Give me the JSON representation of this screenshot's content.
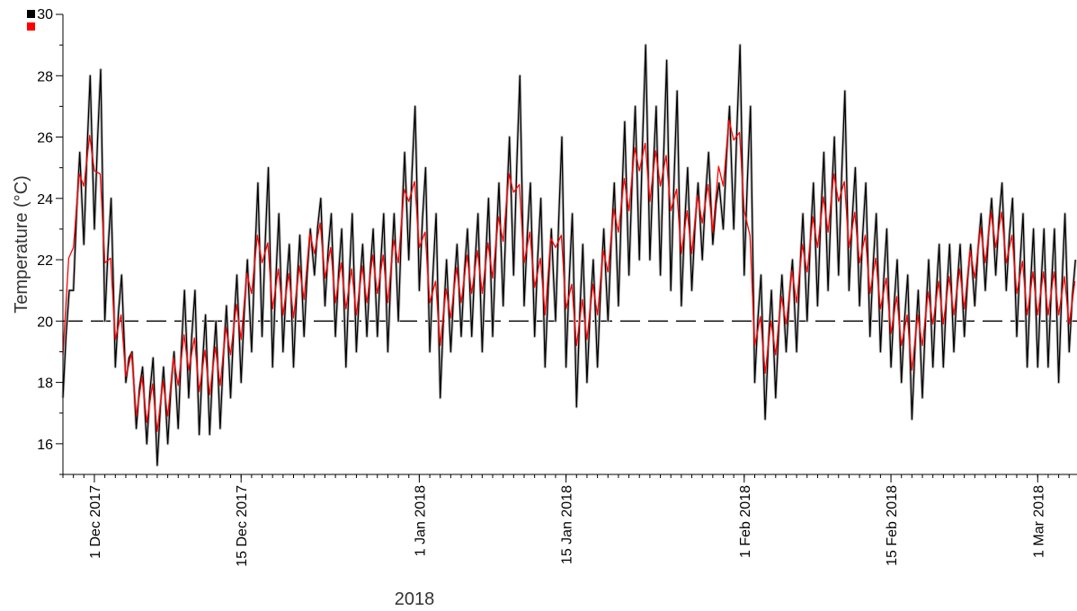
{
  "chart_data": {
    "type": "line",
    "title": "",
    "xlabel": "2018",
    "ylabel": "Temperature (°C)",
    "x_unit": "date",
    "xlim": [
      "2017-11-28",
      "2018-03-04"
    ],
    "ylim": [
      15,
      30
    ],
    "y_ticks": [
      16,
      18,
      20,
      22,
      24,
      26,
      28,
      30
    ],
    "x_ticks": [
      {
        "date": "2017-12-01",
        "label": "1 Dec 2017"
      },
      {
        "date": "2017-12-15",
        "label": "15 Dec 2017"
      },
      {
        "date": "2018-01-01",
        "label": "1 Jan 2018"
      },
      {
        "date": "2018-01-15",
        "label": "15 Jan 2018"
      },
      {
        "date": "2018-02-01",
        "label": "1 Feb 2018"
      },
      {
        "date": "2018-02-15",
        "label": "15 Feb 2018"
      },
      {
        "date": "2018-03-01",
        "label": "1 Mar 2018"
      }
    ],
    "reference_line": {
      "y": 20,
      "style": "dashed",
      "color": "#000000"
    },
    "legend": {
      "placement": "top-left",
      "entries": [
        {
          "color": "#000000"
        },
        {
          "color": "#ff0000"
        }
      ]
    },
    "grid": false,
    "series": [
      {
        "color": "#000000",
        "range_color": "#c0c0c0",
        "style": "daily-oscillation",
        "points": [
          [
            "2017-11-28",
            17.5,
            21.0
          ],
          [
            "2017-11-29",
            21.0,
            25.5
          ],
          [
            "2017-11-30",
            22.5,
            28.0
          ],
          [
            "2017-12-01",
            23.0,
            28.2
          ],
          [
            "2017-12-02",
            20.0,
            24.0
          ],
          [
            "2017-12-03",
            18.5,
            21.5
          ],
          [
            "2017-12-04",
            18.0,
            19.0
          ],
          [
            "2017-12-05",
            16.5,
            18.5
          ],
          [
            "2017-12-06",
            16.0,
            18.8
          ],
          [
            "2017-12-07",
            15.3,
            18.5
          ],
          [
            "2017-12-08",
            16.0,
            19.0
          ],
          [
            "2017-12-09",
            16.5,
            21.0
          ],
          [
            "2017-12-10",
            17.5,
            21.0
          ],
          [
            "2017-12-11",
            16.3,
            20.2
          ],
          [
            "2017-12-12",
            16.3,
            20.0
          ],
          [
            "2017-12-13",
            16.5,
            20.5
          ],
          [
            "2017-12-14",
            17.5,
            21.5
          ],
          [
            "2017-12-15",
            18.0,
            22.0
          ],
          [
            "2017-12-16",
            19.0,
            24.5
          ],
          [
            "2017-12-17",
            19.5,
            25.0
          ],
          [
            "2017-12-18",
            18.5,
            23.5
          ],
          [
            "2017-12-19",
            19.0,
            22.5
          ],
          [
            "2017-12-20",
            18.5,
            22.8
          ],
          [
            "2017-12-21",
            19.5,
            23.0
          ],
          [
            "2017-12-22",
            21.5,
            24.0
          ],
          [
            "2017-12-23",
            20.5,
            23.5
          ],
          [
            "2017-12-24",
            19.5,
            23.0
          ],
          [
            "2017-12-25",
            18.5,
            23.5
          ],
          [
            "2017-12-26",
            19.0,
            22.5
          ],
          [
            "2017-12-27",
            19.5,
            23.0
          ],
          [
            "2017-12-28",
            19.5,
            23.5
          ],
          [
            "2017-12-29",
            19.0,
            23.5
          ],
          [
            "2017-12-30",
            20.0,
            25.5
          ],
          [
            "2017-12-31",
            22.0,
            27.0
          ],
          [
            "2018-01-01",
            21.0,
            25.0
          ],
          [
            "2018-01-02",
            19.0,
            23.5
          ],
          [
            "2018-01-03",
            17.5,
            22.0
          ],
          [
            "2018-01-04",
            19.0,
            22.5
          ],
          [
            "2018-01-05",
            19.5,
            23.0
          ],
          [
            "2018-01-06",
            19.5,
            23.5
          ],
          [
            "2018-01-07",
            19.0,
            24.0
          ],
          [
            "2018-01-08",
            19.5,
            24.5
          ],
          [
            "2018-01-09",
            20.5,
            26.0
          ],
          [
            "2018-01-10",
            21.5,
            28.0
          ],
          [
            "2018-01-11",
            20.5,
            24.5
          ],
          [
            "2018-01-12",
            19.5,
            24.0
          ],
          [
            "2018-01-13",
            18.5,
            23.0
          ],
          [
            "2018-01-14",
            20.0,
            26.0
          ],
          [
            "2018-01-15",
            18.5,
            23.5
          ],
          [
            "2018-01-16",
            17.2,
            22.5
          ],
          [
            "2018-01-17",
            18.0,
            22.0
          ],
          [
            "2018-01-18",
            18.5,
            23.0
          ],
          [
            "2018-01-19",
            20.0,
            24.5
          ],
          [
            "2018-01-20",
            20.5,
            26.5
          ],
          [
            "2018-01-21",
            21.5,
            27.0
          ],
          [
            "2018-01-22",
            22.0,
            29.0
          ],
          [
            "2018-01-23",
            22.0,
            27.0
          ],
          [
            "2018-01-24",
            21.5,
            28.5
          ],
          [
            "2018-01-25",
            21.0,
            27.5
          ],
          [
            "2018-01-26",
            20.5,
            25.0
          ],
          [
            "2018-01-27",
            21.0,
            24.5
          ],
          [
            "2018-01-28",
            22.0,
            25.5
          ],
          [
            "2018-01-29",
            22.5,
            24.5
          ],
          [
            "2018-01-30",
            23.0,
            27.0
          ],
          [
            "2018-01-31",
            23.0,
            29.0
          ],
          [
            "2018-02-01",
            21.5,
            27.0
          ],
          [
            "2018-02-02",
            18.0,
            21.5
          ],
          [
            "2018-02-03",
            16.8,
            21.0
          ],
          [
            "2018-02-04",
            17.5,
            21.5
          ],
          [
            "2018-02-05",
            19.0,
            22.0
          ],
          [
            "2018-02-06",
            19.0,
            23.5
          ],
          [
            "2018-02-07",
            20.0,
            24.5
          ],
          [
            "2018-02-08",
            20.5,
            25.5
          ],
          [
            "2018-02-09",
            21.0,
            26.0
          ],
          [
            "2018-02-10",
            21.5,
            27.5
          ],
          [
            "2018-02-11",
            21.0,
            25.0
          ],
          [
            "2018-02-12",
            20.5,
            24.5
          ],
          [
            "2018-02-13",
            19.5,
            23.5
          ],
          [
            "2018-02-14",
            19.0,
            23.0
          ],
          [
            "2018-02-15",
            18.5,
            22.0
          ],
          [
            "2018-02-16",
            18.0,
            21.5
          ],
          [
            "2018-02-17",
            16.8,
            21.0
          ],
          [
            "2018-02-18",
            17.5,
            22.0
          ],
          [
            "2018-02-19",
            18.5,
            22.5
          ],
          [
            "2018-02-20",
            18.5,
            22.5
          ],
          [
            "2018-02-21",
            19.0,
            22.5
          ],
          [
            "2018-02-22",
            19.5,
            22.5
          ],
          [
            "2018-02-23",
            20.5,
            23.5
          ],
          [
            "2018-02-24",
            21.0,
            24.0
          ],
          [
            "2018-02-25",
            21.5,
            24.5
          ],
          [
            "2018-02-26",
            21.0,
            24.0
          ],
          [
            "2018-02-27",
            19.5,
            23.5
          ],
          [
            "2018-02-28",
            18.5,
            23.0
          ],
          [
            "2018-03-01",
            18.5,
            23.0
          ],
          [
            "2018-03-02",
            18.5,
            23.0
          ],
          [
            "2018-03-03",
            18.0,
            23.5
          ],
          [
            "2018-03-04",
            19.0,
            22.0
          ]
        ]
      },
      {
        "color": "#ff0000",
        "style": "smoothed",
        "points": [
          [
            "2017-11-28",
            19.5
          ],
          [
            "2017-11-29",
            23.0
          ],
          [
            "2017-11-30",
            25.0
          ],
          [
            "2017-12-01",
            25.5
          ],
          [
            "2017-12-02",
            22.5
          ],
          [
            "2017-12-03",
            20.0
          ],
          [
            "2017-12-04",
            18.8
          ],
          [
            "2017-12-05",
            17.5
          ],
          [
            "2017-12-06",
            17.3
          ],
          [
            "2017-12-07",
            17.0
          ],
          [
            "2017-12-08",
            17.5
          ],
          [
            "2017-12-09",
            18.5
          ],
          [
            "2017-12-10",
            19.0
          ],
          [
            "2017-12-11",
            18.3
          ],
          [
            "2017-12-12",
            18.2
          ],
          [
            "2017-12-13",
            18.5
          ],
          [
            "2017-12-14",
            19.5
          ],
          [
            "2017-12-15",
            20.0
          ],
          [
            "2017-12-16",
            21.5
          ],
          [
            "2017-12-17",
            22.5
          ],
          [
            "2017-12-18",
            21.0
          ],
          [
            "2017-12-19",
            20.8
          ],
          [
            "2017-12-20",
            20.7
          ],
          [
            "2017-12-21",
            21.3
          ],
          [
            "2017-12-22",
            22.8
          ],
          [
            "2017-12-23",
            22.0
          ],
          [
            "2017-12-24",
            21.2
          ],
          [
            "2017-12-25",
            21.0
          ],
          [
            "2017-12-26",
            20.8
          ],
          [
            "2017-12-27",
            21.2
          ],
          [
            "2017-12-28",
            21.5
          ],
          [
            "2017-12-29",
            21.2
          ],
          [
            "2017-12-30",
            22.5
          ],
          [
            "2017-12-31",
            24.5
          ],
          [
            "2018-01-01",
            23.0
          ],
          [
            "2018-01-02",
            21.2
          ],
          [
            "2018-01-03",
            19.8
          ],
          [
            "2018-01-04",
            20.7
          ],
          [
            "2018-01-05",
            21.2
          ],
          [
            "2018-01-06",
            21.5
          ],
          [
            "2018-01-07",
            21.5
          ],
          [
            "2018-01-08",
            22.0
          ],
          [
            "2018-01-09",
            23.2
          ],
          [
            "2018-01-10",
            24.8
          ],
          [
            "2018-01-11",
            22.5
          ],
          [
            "2018-01-12",
            21.7
          ],
          [
            "2018-01-13",
            20.8
          ],
          [
            "2018-01-14",
            23.0
          ],
          [
            "2018-01-15",
            21.0
          ],
          [
            "2018-01-16",
            19.8
          ],
          [
            "2018-01-17",
            20.0
          ],
          [
            "2018-01-18",
            20.8
          ],
          [
            "2018-01-19",
            22.2
          ],
          [
            "2018-01-20",
            23.5
          ],
          [
            "2018-01-21",
            24.2
          ],
          [
            "2018-01-22",
            25.5
          ],
          [
            "2018-01-23",
            24.5
          ],
          [
            "2018-01-24",
            25.0
          ],
          [
            "2018-01-25",
            24.2
          ],
          [
            "2018-01-26",
            22.8
          ],
          [
            "2018-01-27",
            22.8
          ],
          [
            "2018-01-28",
            23.8
          ],
          [
            "2018-01-29",
            23.5
          ],
          [
            "2018-01-30",
            25.0
          ],
          [
            "2018-01-31",
            26.5
          ],
          [
            "2018-02-01",
            24.2
          ],
          [
            "2018-02-02",
            19.8
          ],
          [
            "2018-02-03",
            18.9
          ],
          [
            "2018-02-04",
            19.5
          ],
          [
            "2018-02-05",
            20.5
          ],
          [
            "2018-02-06",
            21.2
          ],
          [
            "2018-02-07",
            22.2
          ],
          [
            "2018-02-08",
            23.0
          ],
          [
            "2018-02-09",
            23.5
          ],
          [
            "2018-02-10",
            24.5
          ],
          [
            "2018-02-11",
            23.0
          ],
          [
            "2018-02-12",
            22.5
          ],
          [
            "2018-02-13",
            21.5
          ],
          [
            "2018-02-14",
            21.0
          ],
          [
            "2018-02-15",
            20.2
          ],
          [
            "2018-02-16",
            19.8
          ],
          [
            "2018-02-17",
            19.0
          ],
          [
            "2018-02-18",
            19.8
          ],
          [
            "2018-02-19",
            20.5
          ],
          [
            "2018-02-20",
            20.5
          ],
          [
            "2018-02-21",
            20.8
          ],
          [
            "2018-02-22",
            21.0
          ],
          [
            "2018-02-23",
            22.0
          ],
          [
            "2018-02-24",
            22.5
          ],
          [
            "2018-02-25",
            23.0
          ],
          [
            "2018-02-26",
            22.5
          ],
          [
            "2018-02-27",
            21.5
          ],
          [
            "2018-02-28",
            20.8
          ],
          [
            "2018-03-01",
            20.8
          ],
          [
            "2018-03-02",
            20.8
          ],
          [
            "2018-03-03",
            20.8
          ],
          [
            "2018-03-04",
            20.5
          ]
        ]
      }
    ]
  }
}
